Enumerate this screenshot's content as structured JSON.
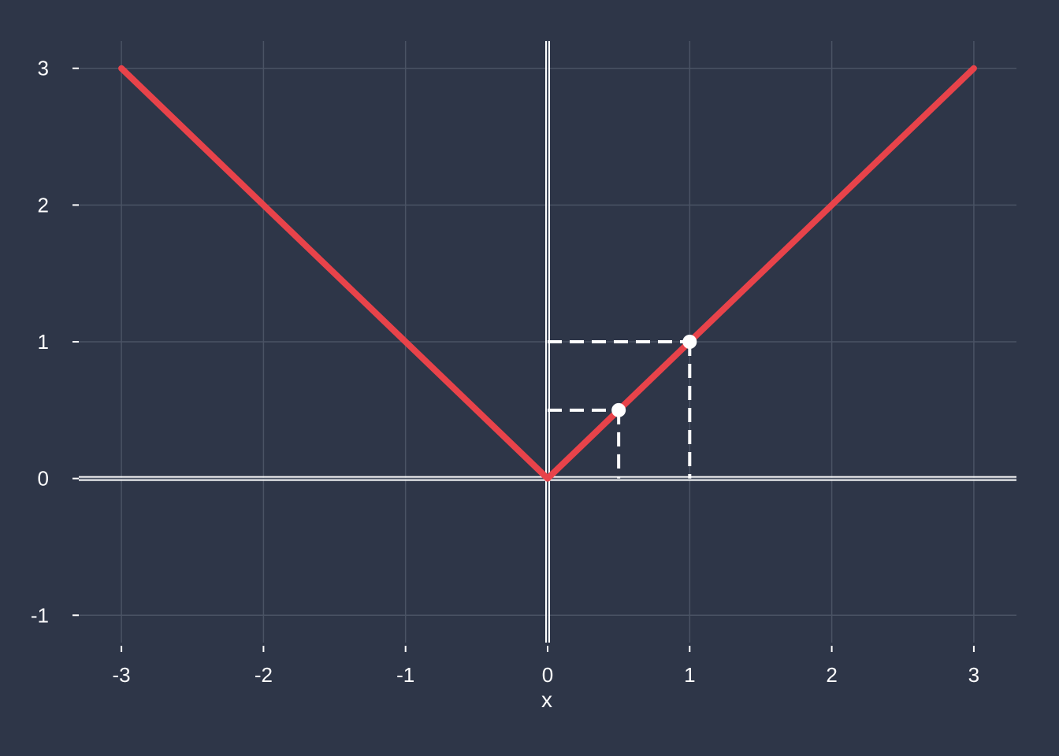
{
  "chart_data": {
    "type": "line",
    "title": "",
    "xlabel": "x",
    "ylabel": "",
    "xlim": [
      -3.3,
      3.3
    ],
    "ylim": [
      -1.2,
      3.2
    ],
    "grid": true,
    "x_ticks": [
      -3,
      -2,
      -1,
      0,
      1,
      2,
      3
    ],
    "x_tick_labels": [
      "-3",
      "-2",
      "-1",
      "0",
      "1",
      "2",
      "3"
    ],
    "y_ticks": [
      -1,
      0,
      1,
      2,
      3
    ],
    "y_tick_labels": [
      "-1",
      "0",
      "1",
      "2",
      "3"
    ],
    "series": [
      {
        "x": [
          -3,
          -2,
          -1,
          0,
          1,
          2,
          3
        ],
        "y": [
          3,
          2,
          1,
          0,
          1,
          2,
          3
        ],
        "color": "#e8434a"
      }
    ],
    "points": [
      {
        "x": 0.5,
        "y": 0.5,
        "color": "#ffffff"
      },
      {
        "x": 1,
        "y": 1,
        "color": "#ffffff"
      }
    ],
    "guide_lines": [
      {
        "x": 0.5,
        "y": 0.5,
        "style": "dashed"
      },
      {
        "x": 1,
        "y": 1,
        "style": "dashed"
      }
    ],
    "colors": {
      "background": "#2e3648",
      "grid": "#4a5364",
      "axis": "#ffffff",
      "series": "#e8434a",
      "text": "#ffffff"
    }
  }
}
